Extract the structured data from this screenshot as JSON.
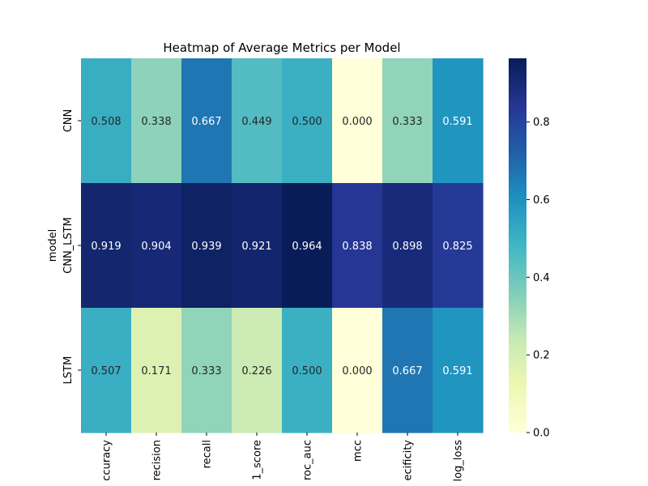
{
  "chart_data": {
    "type": "heatmap",
    "title": "Heatmap of Average Metrics per Model",
    "ylabel": "model",
    "xlabel": "",
    "rows": [
      "CNN",
      "CNN_LSTM",
      "LSTM"
    ],
    "columns": [
      "ccuracy",
      "recision",
      "recall",
      "1_score",
      "roc_auc",
      "mcc",
      "ecificity",
      "log_loss"
    ],
    "values": [
      [
        0.508,
        0.338,
        0.667,
        0.449,
        0.5,
        0.0,
        0.333,
        0.591
      ],
      [
        0.919,
        0.904,
        0.939,
        0.921,
        0.964,
        0.838,
        0.898,
        0.825
      ],
      [
        0.507,
        0.171,
        0.333,
        0.226,
        0.5,
        0.0,
        0.667,
        0.591
      ]
    ],
    "labels": [
      [
        "0.508",
        "0.338",
        "0.667",
        "0.449",
        "0.500",
        "0.000",
        "0.333",
        "0.591"
      ],
      [
        "0.919",
        "0.904",
        "0.939",
        "0.921",
        "0.964",
        "0.838",
        "0.898",
        "0.825"
      ],
      [
        "0.507",
        "0.171",
        "0.333",
        "0.226",
        "0.500",
        "0.000",
        "0.667",
        "0.591"
      ]
    ],
    "colormap": "YlGnBu",
    "vmin": 0,
    "vmax": 0.964,
    "colorbar_ticks": [
      0.0,
      0.2,
      0.4,
      0.6,
      0.8
    ],
    "colorbar_tick_labels": [
      "0.0",
      "0.2",
      "0.4",
      "0.6",
      "0.8"
    ],
    "grid": false,
    "legend": "colorbar-right"
  }
}
